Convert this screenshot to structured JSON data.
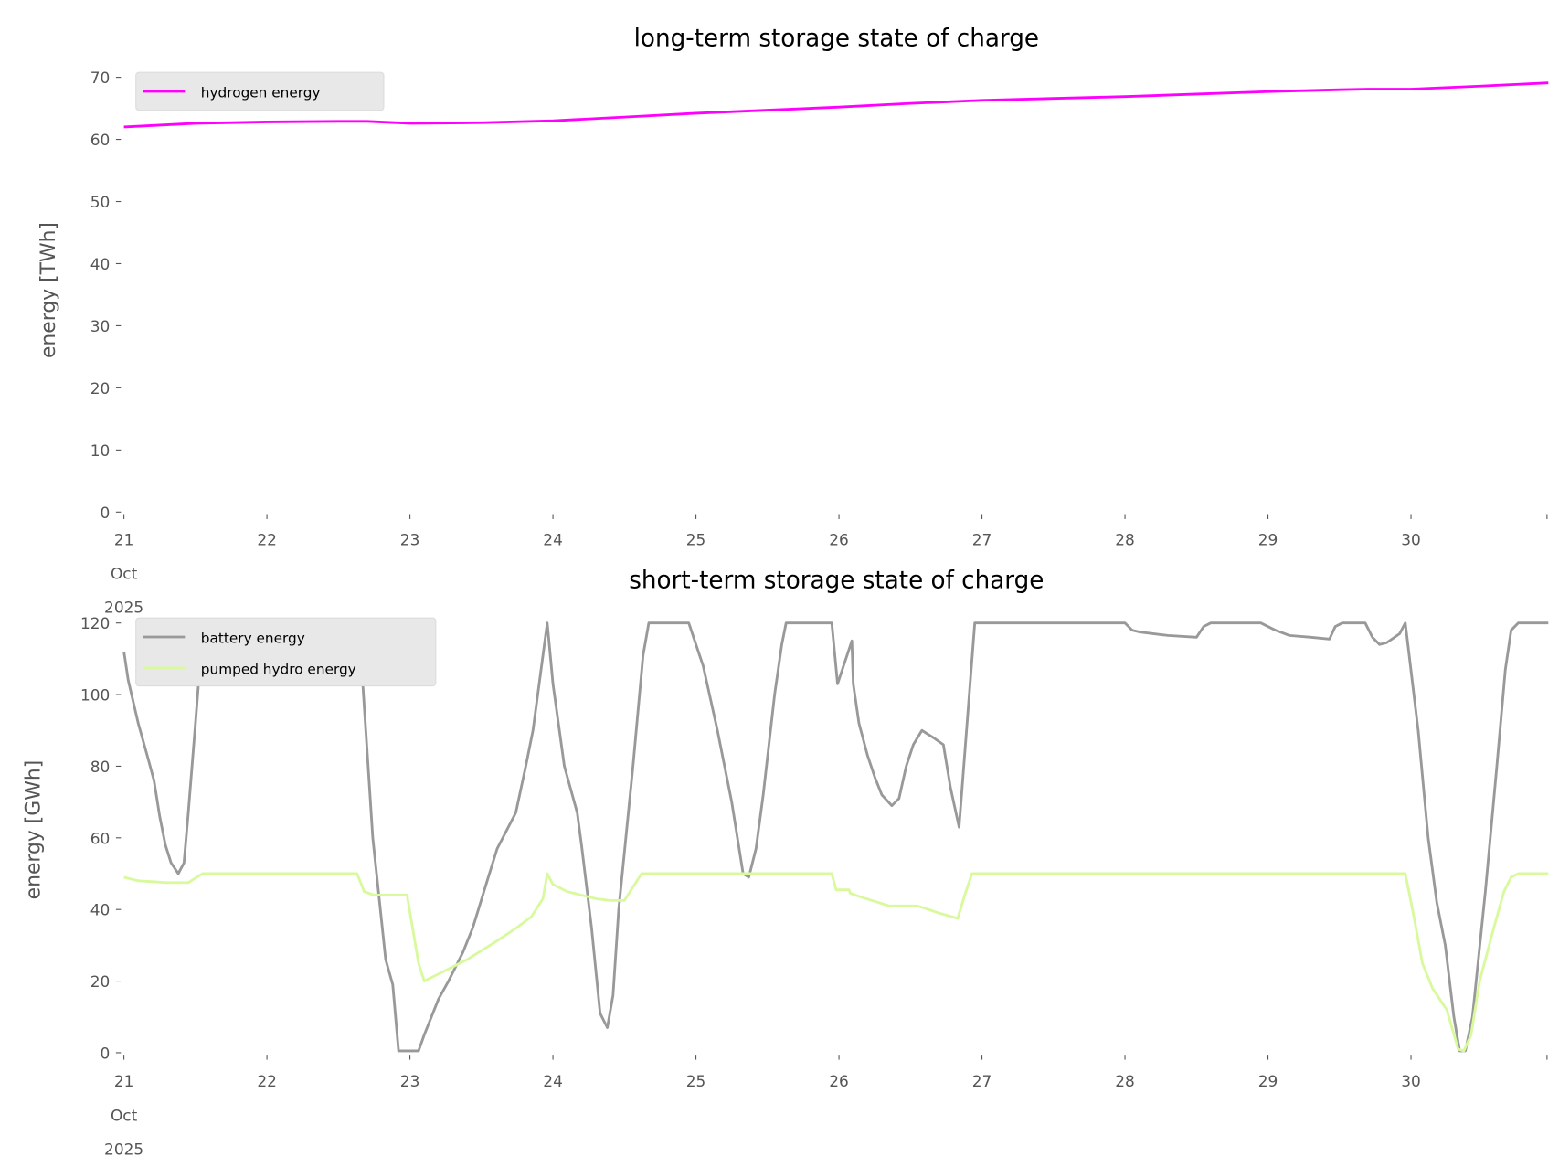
{
  "chart_data": [
    {
      "type": "line",
      "title": "long-term storage state of charge",
      "xlabel": "",
      "ylabel": "energy [TWh]",
      "xlim": [
        21,
        31
      ],
      "ylim": [
        0,
        70.5
      ],
      "x_ticks": [
        "21",
        "22",
        "23",
        "24",
        "25",
        "26",
        "27",
        "28",
        "29",
        "30"
      ],
      "x_tick_sub": [
        "Oct",
        "2025"
      ],
      "y_ticks": [
        0,
        10,
        20,
        30,
        40,
        50,
        60,
        70
      ],
      "legend_position": "top-left",
      "series": [
        {
          "name": "hydrogen energy",
          "color": "#ff00ff",
          "points": [
            [
              21.0,
              62
            ],
            [
              21.5,
              62.6
            ],
            [
              22.0,
              62.8
            ],
            [
              22.5,
              62.9
            ],
            [
              22.7,
              62.9
            ],
            [
              23.0,
              62.6
            ],
            [
              23.5,
              62.7
            ],
            [
              24.0,
              63.0
            ],
            [
              24.5,
              63.6
            ],
            [
              25.0,
              64.2
            ],
            [
              25.5,
              64.7
            ],
            [
              26.0,
              65.2
            ],
            [
              26.5,
              65.8
            ],
            [
              27.0,
              66.3
            ],
            [
              27.5,
              66.6
            ],
            [
              28.0,
              66.9
            ],
            [
              28.5,
              67.3
            ],
            [
              29.0,
              67.7
            ],
            [
              29.5,
              68.0
            ],
            [
              29.7,
              68.1
            ],
            [
              30.0,
              68.1
            ],
            [
              30.5,
              68.6
            ],
            [
              30.96,
              69.1
            ]
          ]
        }
      ]
    },
    {
      "type": "line",
      "title": "short-term storage state of charge",
      "xlabel": "",
      "ylabel": "energy [GWh]",
      "xlim": [
        21,
        31
      ],
      "ylim": [
        0,
        122
      ],
      "x_ticks": [
        "21",
        "22",
        "23",
        "24",
        "25",
        "26",
        "27",
        "28",
        "29",
        "30"
      ],
      "x_tick_sub": [
        "Oct",
        "2025"
      ],
      "y_ticks": [
        0,
        20,
        40,
        60,
        80,
        100,
        120
      ],
      "legend_position": "top-left",
      "series": [
        {
          "name": "battery energy",
          "color": "#999999",
          "points": [
            [
              21.0,
              112
            ],
            [
              21.03,
              104
            ],
            [
              21.1,
              92
            ],
            [
              21.17,
              82
            ],
            [
              21.21,
              76
            ],
            [
              21.25,
              66
            ],
            [
              21.29,
              58
            ],
            [
              21.33,
              53
            ],
            [
              21.38,
              50
            ],
            [
              21.42,
              53
            ],
            [
              21.45,
              67
            ],
            [
              21.5,
              92
            ],
            [
              21.55,
              118
            ],
            [
              21.57,
              120
            ],
            [
              22.3,
              120
            ],
            [
              22.4,
              108
            ],
            [
              22.5,
              112
            ],
            [
              22.57,
              120
            ],
            [
              22.63,
              119
            ],
            [
              22.67,
              103
            ],
            [
              22.74,
              60
            ],
            [
              22.83,
              26
            ],
            [
              22.88,
              19
            ],
            [
              22.92,
              0.5
            ],
            [
              23.06,
              0.5
            ],
            [
              23.1,
              5
            ],
            [
              23.2,
              15
            ],
            [
              23.27,
              20
            ],
            [
              23.37,
              28
            ],
            [
              23.44,
              35
            ],
            [
              23.54,
              48
            ],
            [
              23.61,
              57
            ],
            [
              23.74,
              67
            ],
            [
              23.81,
              80
            ],
            [
              23.86,
              90
            ],
            [
              23.96,
              120
            ],
            [
              24.0,
              103
            ],
            [
              24.08,
              80
            ],
            [
              24.17,
              67
            ],
            [
              24.2,
              58
            ],
            [
              24.27,
              35
            ],
            [
              24.33,
              11
            ],
            [
              24.38,
              7
            ],
            [
              24.42,
              16
            ],
            [
              24.46,
              40
            ],
            [
              24.56,
              80
            ],
            [
              24.63,
              111
            ],
            [
              24.67,
              120
            ],
            [
              24.95,
              120
            ],
            [
              25.05,
              108
            ],
            [
              25.15,
              90
            ],
            [
              25.25,
              70
            ],
            [
              25.33,
              50
            ],
            [
              25.37,
              49
            ],
            [
              25.42,
              57
            ],
            [
              25.47,
              72
            ],
            [
              25.55,
              100
            ],
            [
              25.6,
              114
            ],
            [
              25.63,
              120
            ],
            [
              25.95,
              120
            ],
            [
              25.99,
              103
            ],
            [
              26.09,
              115
            ],
            [
              26.1,
              103
            ],
            [
              26.14,
              92
            ],
            [
              26.2,
              83
            ],
            [
              26.25,
              77
            ],
            [
              26.3,
              72
            ],
            [
              26.37,
              69
            ],
            [
              26.42,
              71
            ],
            [
              26.47,
              80
            ],
            [
              26.52,
              86
            ],
            [
              26.58,
              90
            ],
            [
              26.66,
              88
            ],
            [
              26.73,
              86
            ],
            [
              26.78,
              74
            ],
            [
              26.84,
              63
            ],
            [
              26.95,
              120
            ],
            [
              28.0,
              120
            ],
            [
              28.05,
              118
            ],
            [
              28.1,
              117.5
            ],
            [
              28.3,
              116.5
            ],
            [
              28.5,
              116
            ],
            [
              28.55,
              119
            ],
            [
              28.6,
              120
            ],
            [
              28.95,
              120
            ],
            [
              29.05,
              118
            ],
            [
              29.15,
              116.5
            ],
            [
              29.3,
              116
            ],
            [
              29.43,
              115.5
            ],
            [
              29.47,
              119
            ],
            [
              29.52,
              120
            ],
            [
              29.68,
              120
            ],
            [
              29.73,
              116
            ],
            [
              29.78,
              114
            ],
            [
              29.83,
              114.5
            ],
            [
              29.92,
              117
            ],
            [
              29.96,
              120
            ],
            [
              30.05,
              90
            ],
            [
              30.12,
              60
            ],
            [
              30.18,
              42
            ],
            [
              30.24,
              30
            ],
            [
              30.3,
              10
            ],
            [
              30.34,
              0.5
            ],
            [
              30.38,
              0.5
            ],
            [
              30.43,
              10
            ],
            [
              30.52,
              45
            ],
            [
              30.6,
              80
            ],
            [
              30.66,
              107
            ],
            [
              30.7,
              118
            ],
            [
              30.75,
              120
            ],
            [
              30.96,
              120
            ]
          ]
        },
        {
          "name": "pumped hydro energy",
          "color": "#d9f99d",
          "points": [
            [
              21.0,
              49
            ],
            [
              21.1,
              48
            ],
            [
              21.3,
              47.5
            ],
            [
              21.45,
              47.5
            ],
            [
              21.55,
              50
            ],
            [
              22.63,
              50
            ],
            [
              22.68,
              45
            ],
            [
              22.75,
              44
            ],
            [
              22.98,
              44
            ],
            [
              23.06,
              25
            ],
            [
              23.1,
              20
            ],
            [
              23.2,
              22
            ],
            [
              23.4,
              26
            ],
            [
              23.6,
              31
            ],
            [
              23.75,
              35
            ],
            [
              23.85,
              38
            ],
            [
              23.93,
              43
            ],
            [
              23.96,
              50
            ],
            [
              24.0,
              47
            ],
            [
              24.1,
              45
            ],
            [
              24.3,
              43
            ],
            [
              24.4,
              42.5
            ],
            [
              24.5,
              42.5
            ],
            [
              24.62,
              50
            ],
            [
              25.95,
              50
            ],
            [
              25.98,
              45.5
            ],
            [
              26.07,
              45.5
            ],
            [
              26.08,
              44.5
            ],
            [
              26.15,
              43.5
            ],
            [
              26.35,
              41
            ],
            [
              26.55,
              41
            ],
            [
              26.7,
              39
            ],
            [
              26.83,
              37.5
            ],
            [
              26.88,
              44
            ],
            [
              26.93,
              50
            ],
            [
              29.96,
              50
            ],
            [
              30.02,
              38
            ],
            [
              30.08,
              25
            ],
            [
              30.15,
              18
            ],
            [
              30.25,
              12
            ],
            [
              30.33,
              1
            ],
            [
              30.37,
              0.5
            ],
            [
              30.42,
              5
            ],
            [
              30.48,
              20
            ],
            [
              30.58,
              35
            ],
            [
              30.65,
              45
            ],
            [
              30.7,
              49
            ],
            [
              30.75,
              50
            ],
            [
              30.96,
              50
            ]
          ]
        }
      ]
    }
  ]
}
